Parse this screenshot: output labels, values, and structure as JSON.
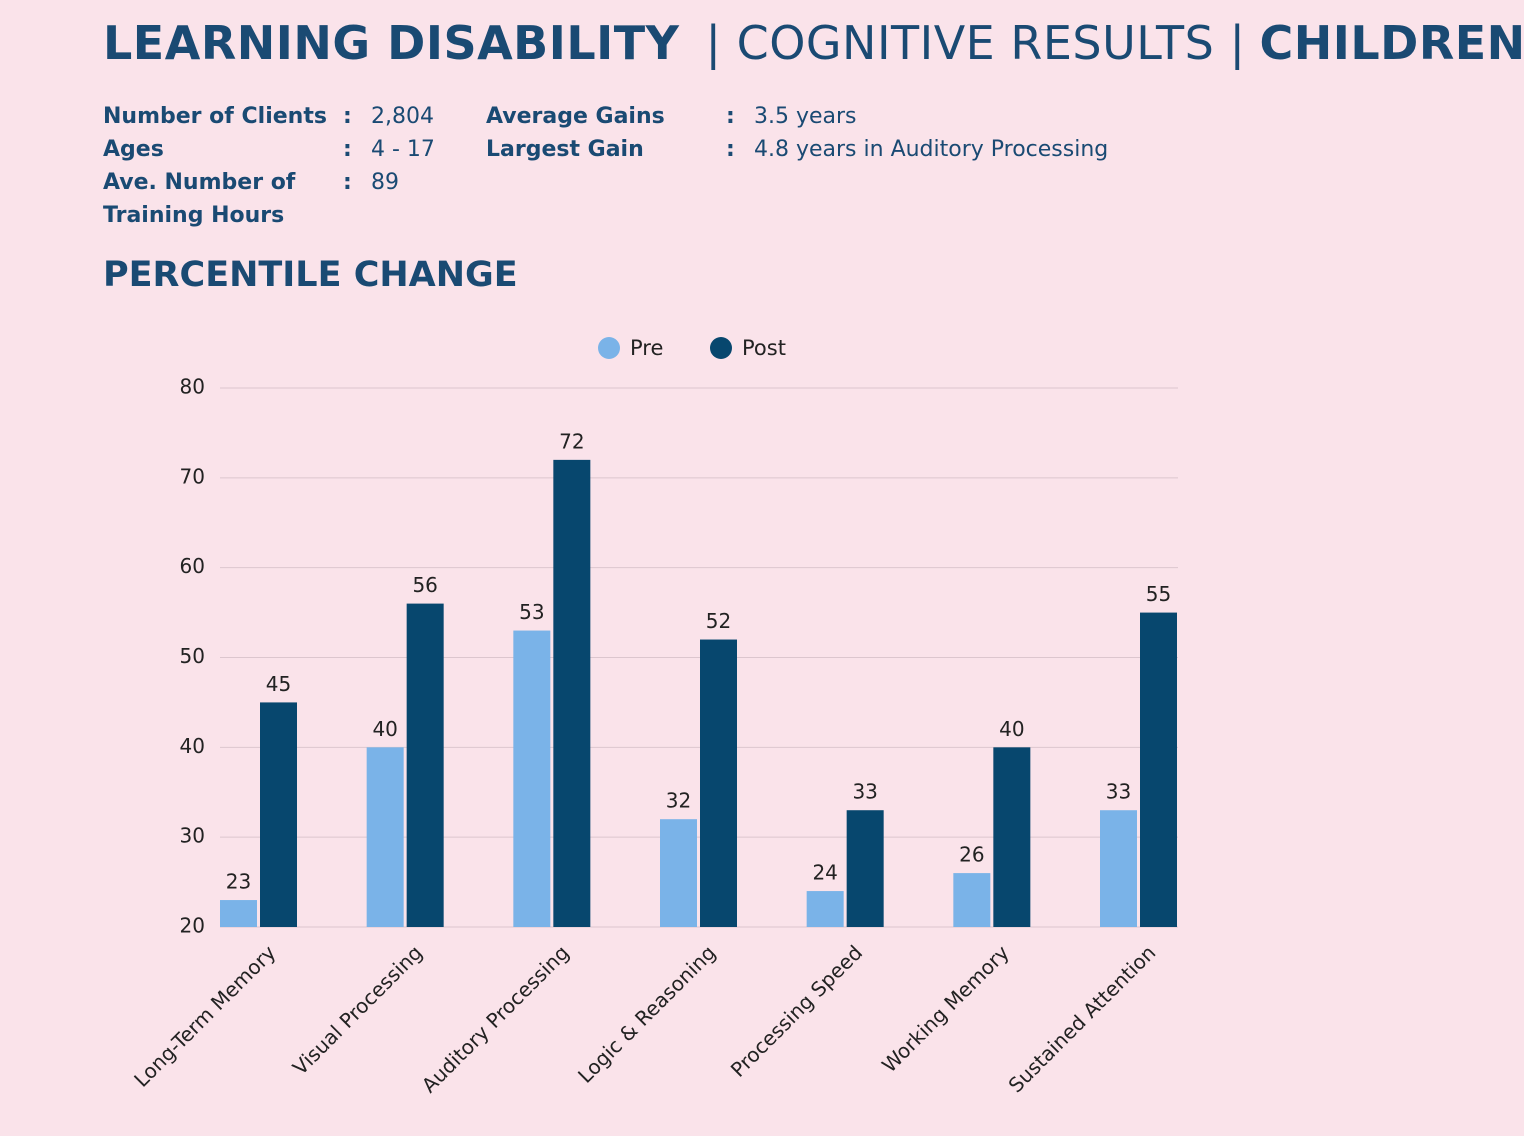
{
  "header": {
    "title_part1": "LEARNING DISABILITY",
    "title_part2": "| COGNITIVE RESULTS |",
    "title_part3": "CHILDREN"
  },
  "stats_left": [
    {
      "label": "Number of Clients",
      "separator": ":",
      "value": "2,804"
    },
    {
      "label": "Ages",
      "separator": ":",
      "value": "4 - 17"
    },
    {
      "label": "Ave. Number of Training Hours",
      "separator": ":",
      "value": "89"
    }
  ],
  "stats_right": [
    {
      "label": "Average Gains",
      "separator": ":",
      "value": "3.5 years"
    },
    {
      "label": "Largest Gain",
      "separator": ":",
      "value": "4.8 years in Auditory Processing"
    }
  ],
  "chart_data": {
    "type": "bar",
    "title": "PERCENTILE CHANGE",
    "categories": [
      "Long-Term Memory",
      "Visual Processing",
      "Auditory Processing",
      "Logic & Reasoning",
      "Processing Speed",
      "Working Memory",
      "Sustained Attention"
    ],
    "series": [
      {
        "name": "Pre",
        "color": "#7ab3e8",
        "values": [
          23,
          40,
          53,
          32,
          24,
          26,
          33
        ]
      },
      {
        "name": "Post",
        "color": "#07476e",
        "values": [
          45,
          56,
          72,
          52,
          33,
          40,
          55
        ]
      }
    ],
    "ylim": [
      20,
      80
    ],
    "yticks": [
      20,
      30,
      40,
      50,
      60,
      70,
      80
    ],
    "grid": true,
    "legend": "top"
  }
}
